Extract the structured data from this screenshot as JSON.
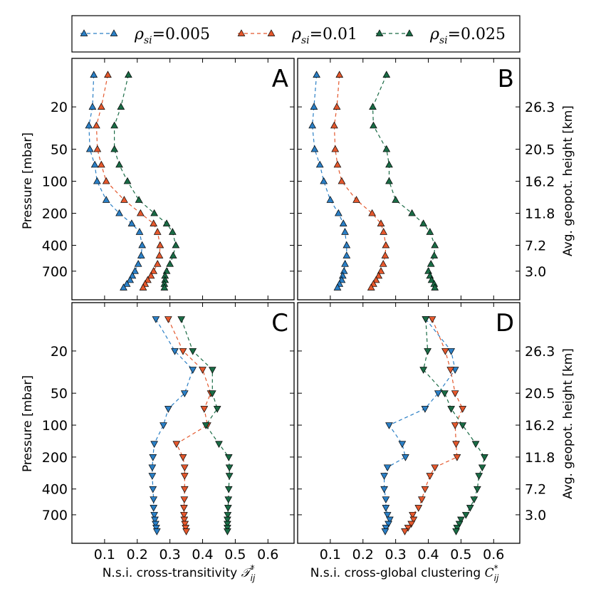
{
  "chart_data": {
    "type": "line",
    "legend": {
      "position": "top",
      "entries": [
        {
          "symbol": "ρ",
          "subscript": "si",
          "equals": "=",
          "value": "0.005",
          "color": "#2b7fc5"
        },
        {
          "symbol": "ρ",
          "subscript": "si",
          "equals": "=",
          "value": "0.01",
          "color": "#e4582d"
        },
        {
          "symbol": "ρ",
          "subscript": "si",
          "equals": "=",
          "value": "0.025",
          "color": "#1a6b45"
        }
      ]
    },
    "y_axis": {
      "label": "Pressure [mbar]",
      "ticks": [
        "20",
        "50",
        "100",
        "200",
        "400",
        "700"
      ],
      "tick_values": [
        20,
        50,
        100,
        200,
        400,
        700
      ],
      "scale": "log",
      "range": [
        7,
        1300
      ]
    },
    "y2_axis": {
      "label": "Avg. geopot. height [km]",
      "ticks": [
        "26.3",
        "20.5",
        "16.2",
        "11.8",
        "7.2",
        "3.0"
      ]
    },
    "x_axis": {
      "range": [
        0.0,
        0.68
      ],
      "ticks": [
        "0.1",
        "0.2",
        "0.3",
        "0.4",
        "0.5",
        "0.6"
      ],
      "tick_values": [
        0.1,
        0.2,
        0.3,
        0.4,
        0.5,
        0.6
      ],
      "left_label": {
        "text": "N.s.i. cross-transitivity ",
        "math": "𝒯",
        "sup": "*",
        "sub": "ij"
      },
      "right_label": {
        "text": "N.s.i. cross-global clustering ",
        "math": "C",
        "sup": "*",
        "sub": "ij"
      }
    },
    "pressure_levels": [
      10,
      20,
      30,
      50,
      70,
      100,
      150,
      200,
      250,
      300,
      400,
      500,
      600,
      700,
      775,
      850,
      925,
      1000
    ],
    "panels": [
      {
        "letter": "A",
        "marker": "up",
        "series": [
          {
            "name": "0.005",
            "x": [
              0.067,
              0.063,
              0.052,
              0.055,
              0.07,
              0.077,
              0.105,
              0.145,
              0.183,
              0.207,
              0.215,
              0.212,
              0.203,
              0.193,
              0.185,
              0.178,
              0.168,
              0.158
            ]
          },
          {
            "name": "0.01",
            "x": [
              0.11,
              0.09,
              0.075,
              0.078,
              0.09,
              0.105,
              0.16,
              0.21,
              0.25,
              0.262,
              0.27,
              0.268,
              0.262,
              0.25,
              0.242,
              0.232,
              0.224,
              0.218
            ]
          },
          {
            "name": "0.025",
            "x": [
              0.173,
              0.15,
              0.13,
              0.13,
              0.145,
              0.17,
              0.205,
              0.252,
              0.29,
              0.308,
              0.318,
              0.31,
              0.3,
              0.29,
              0.285,
              0.285,
              0.283,
              0.283
            ]
          }
        ]
      },
      {
        "letter": "B",
        "marker": "up",
        "series": [
          {
            "name": "0.005",
            "x": [
              0.058,
              0.05,
              0.045,
              0.052,
              0.068,
              0.08,
              0.1,
              0.125,
              0.14,
              0.145,
              0.15,
              0.15,
              0.145,
              0.142,
              0.138,
              0.135,
              0.128,
              0.122
            ]
          },
          {
            "name": "0.01",
            "x": [
              0.128,
              0.12,
              0.112,
              0.115,
              0.122,
              0.135,
              0.18,
              0.228,
              0.255,
              0.263,
              0.27,
              0.268,
              0.262,
              0.255,
              0.248,
              0.24,
              0.232,
              0.225
            ]
          },
          {
            "name": "0.025",
            "x": [
              0.272,
              0.23,
              0.232,
              0.272,
              0.28,
              0.28,
              0.3,
              0.35,
              0.385,
              0.405,
              0.42,
              0.418,
              0.408,
              0.4,
              0.405,
              0.41,
              0.418,
              0.42
            ]
          }
        ]
      },
      {
        "letter": "C",
        "marker": "down",
        "series": [
          {
            "name": "0.005",
            "x": [
              0.257,
              0.315,
              0.37,
              0.345,
              0.295,
              0.28,
              0.252,
              0.248,
              0.246,
              0.246,
              0.248,
              0.25,
              0.25,
              0.252,
              0.254,
              0.256,
              0.258,
              0.26
            ]
          },
          {
            "name": "0.01",
            "x": [
              0.295,
              0.34,
              0.4,
              0.425,
              0.405,
              0.415,
              0.32,
              0.34,
              0.345,
              0.345,
              0.345,
              0.344,
              0.343,
              0.343,
              0.344,
              0.346,
              0.348,
              0.35
            ]
          },
          {
            "name": "0.025",
            "x": [
              0.335,
              0.37,
              0.43,
              0.43,
              0.445,
              0.41,
              0.45,
              0.48,
              0.482,
              0.482,
              0.48,
              0.479,
              0.478,
              0.477,
              0.476,
              0.476,
              0.476,
              0.476
            ]
          }
        ]
      },
      {
        "letter": "D",
        "marker": "down",
        "series": [
          {
            "name": "0.005",
            "x": [
              0.392,
              0.47,
              0.482,
              0.43,
              0.39,
              0.28,
              0.32,
              0.33,
              0.275,
              0.265,
              0.265,
              0.27,
              0.27,
              0.275,
              0.282,
              0.278,
              0.27,
              0.268
            ]
          },
          {
            "name": "0.01",
            "x": [
              0.412,
              0.452,
              0.468,
              0.482,
              0.505,
              0.482,
              0.485,
              0.488,
              0.42,
              0.405,
              0.39,
              0.38,
              0.37,
              0.352,
              0.355,
              0.348,
              0.338,
              0.328
            ]
          },
          {
            "name": "0.025",
            "x": [
              0.392,
              0.398,
              0.385,
              0.45,
              0.47,
              0.505,
              0.545,
              0.572,
              0.565,
              0.555,
              0.55,
              0.54,
              0.528,
              0.515,
              0.5,
              0.495,
              0.488,
              0.485
            ]
          }
        ]
      }
    ]
  }
}
